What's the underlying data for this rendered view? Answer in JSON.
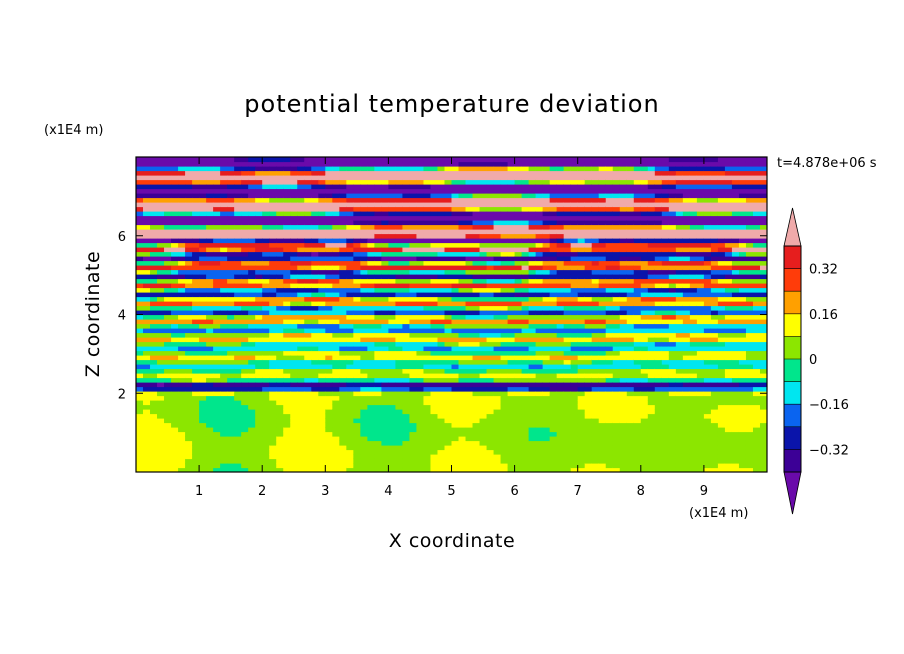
{
  "chart_data": {
    "type": "heatmap",
    "title": "potential temperature deviation",
    "xlabel": "X coordinate",
    "ylabel": "Z coordinate",
    "x_units": "(x1E4 m)",
    "y_units": "(x1E4 m)",
    "time_label": "t=4.878e+06 s",
    "xlim": [
      0,
      10
    ],
    "ylim": [
      0,
      8
    ],
    "x_ticks": [
      1,
      2,
      3,
      4,
      5,
      6,
      7,
      8,
      9
    ],
    "y_ticks": [
      2,
      4,
      6
    ],
    "x_tick_labels": [
      "1",
      "2",
      "3",
      "4",
      "5",
      "6",
      "7",
      "8",
      "9"
    ],
    "y_tick_labels": [
      "2",
      "4",
      "6"
    ],
    "colorbar": {
      "levels": [
        -0.4,
        -0.32,
        -0.24,
        -0.16,
        -0.08,
        0,
        0.08,
        0.16,
        0.24,
        0.32,
        0.4
      ],
      "tick_values": [
        0.32,
        0.16,
        0,
        -0.16,
        -0.32
      ],
      "tick_labels": [
        "0.32",
        "0.16",
        "0",
        "−0.16",
        "−0.32"
      ],
      "colors": [
        "#6a0aaa",
        "#3c0096",
        "#0a14aa",
        "#0a64f0",
        "#00e6f0",
        "#00e68c",
        "#8ce600",
        "#ffff00",
        "#ffa000",
        "#ff3c0a",
        "#e61e1e",
        "#f0aaaa"
      ],
      "extend": "both"
    }
  }
}
